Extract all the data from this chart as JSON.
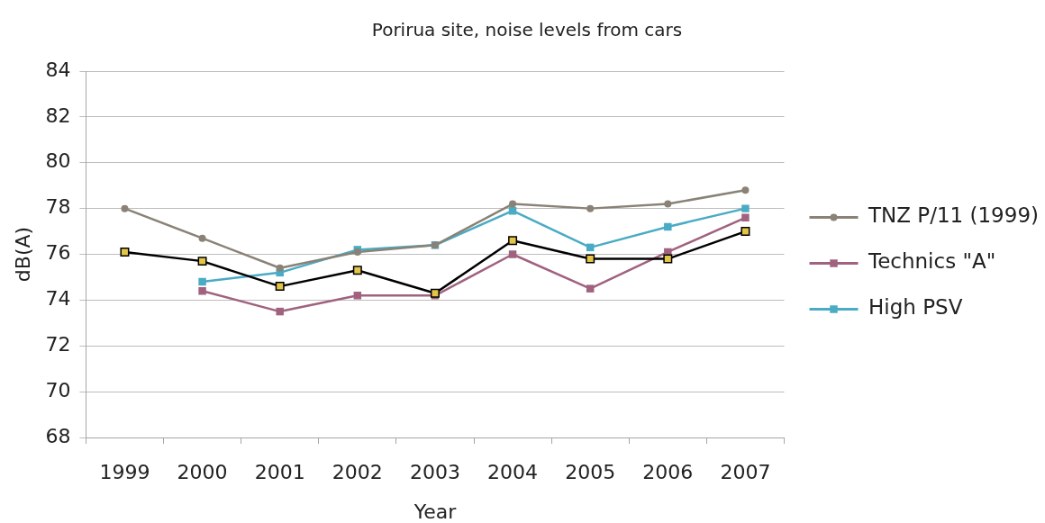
{
  "chart_data": {
    "type": "line",
    "title": "Porirua site, noise levels from cars",
    "xlabel": "Year",
    "ylabel": "dB(A)",
    "categories": [
      "1999",
      "2000",
      "2001",
      "2002",
      "2003",
      "2004",
      "2005",
      "2006",
      "2007"
    ],
    "series": [
      {
        "name": "TNZ P/11 (1999)",
        "color": "#8a8276",
        "marker": "circle",
        "values": [
          78.0,
          76.7,
          75.4,
          76.1,
          76.4,
          78.2,
          78.0,
          78.2,
          78.8
        ]
      },
      {
        "color": "#000000",
        "colors": [
          "#e3c547",
          "#e3c547",
          "#e3c547",
          "#e3c547",
          "#e3c547",
          "#e3c547",
          "#e3c547",
          "#e3c547",
          "#e3c547"
        ],
        "marker": "square",
        "values": [
          76.1,
          75.7,
          74.6,
          75.3,
          74.3,
          76.6,
          75.8,
          75.8,
          77.0
        ]
      },
      {
        "name": "Technics \"A\"",
        "color": "#a0627f",
        "marker": "square",
        "values": [
          null,
          74.4,
          73.5,
          74.2,
          74.2,
          76.0,
          74.5,
          76.1,
          77.6
        ]
      },
      {
        "name": "High PSV",
        "color": "#4aabc4",
        "marker": "square",
        "values": [
          null,
          74.8,
          75.2,
          76.2,
          76.4,
          77.9,
          76.3,
          77.2,
          78.0
        ]
      }
    ],
    "ylim": [
      68,
      84
    ],
    "yticks": [
      68,
      70,
      72,
      74,
      76,
      78,
      80,
      82,
      84
    ],
    "grid": "y",
    "legend": "right",
    "line_style": "solid"
  }
}
